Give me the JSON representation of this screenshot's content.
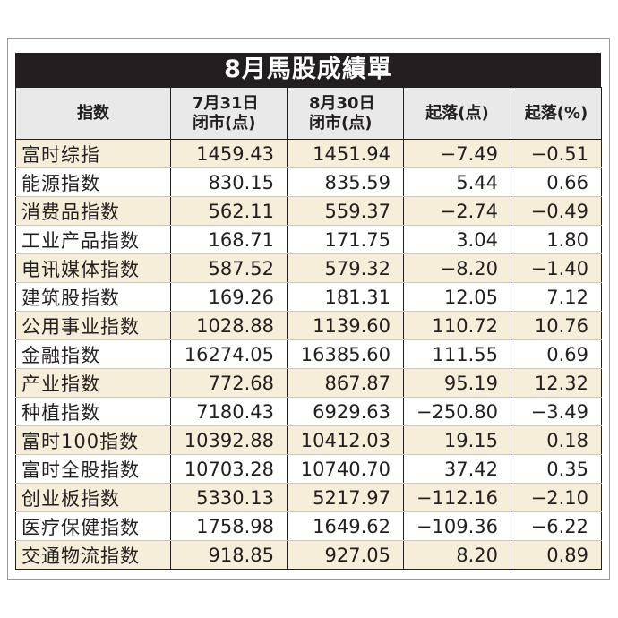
{
  "title": "8月馬股成績單",
  "headers": {
    "index": "指数",
    "jul31_line1": "7月31日",
    "jul31_line2": "闭市(点)",
    "aug30_line1": "8月30日",
    "aug30_line2": "闭市(点)",
    "change_pts": "起落(点)",
    "change_pct": "起落(%)"
  },
  "rows": [
    {
      "name": "富时综指",
      "jul31": "1459.43",
      "aug30": "1451.94",
      "chg": "−7.49",
      "pct": "−0.51"
    },
    {
      "name": "能源指数",
      "jul31": "830.15",
      "aug30": "835.59",
      "chg": "5.44",
      "pct": "0.66"
    },
    {
      "name": "消费品指数",
      "jul31": "562.11",
      "aug30": "559.37",
      "chg": "−2.74",
      "pct": "−0.49"
    },
    {
      "name": "工业产品指数",
      "jul31": "168.71",
      "aug30": "171.75",
      "chg": "3.04",
      "pct": "1.80"
    },
    {
      "name": "电讯媒体指数",
      "jul31": "587.52",
      "aug30": "579.32",
      "chg": "−8.20",
      "pct": "−1.40"
    },
    {
      "name": "建筑股指数",
      "jul31": "169.26",
      "aug30": "181.31",
      "chg": "12.05",
      "pct": "7.12"
    },
    {
      "name": "公用事业指数",
      "jul31": "1028.88",
      "aug30": "1139.60",
      "chg": "110.72",
      "pct": "10.76"
    },
    {
      "name": "金融指数",
      "jul31": "16274.05",
      "aug30": "16385.60",
      "chg": "111.55",
      "pct": "0.69"
    },
    {
      "name": "产业指数",
      "jul31": "772.68",
      "aug30": "867.87",
      "chg": "95.19",
      "pct": "12.32"
    },
    {
      "name": "种植指数",
      "jul31": "7180.43",
      "aug30": "6929.63",
      "chg": "−250.80",
      "pct": "−3.49"
    },
    {
      "name": "富时100指数",
      "jul31": "10392.88",
      "aug30": "10412.03",
      "chg": "19.15",
      "pct": "0.18"
    },
    {
      "name": "富时全股指数",
      "jul31": "10703.28",
      "aug30": "10740.70",
      "chg": "37.42",
      "pct": "0.35"
    },
    {
      "name": "创业板指数",
      "jul31": "5330.13",
      "aug30": "5217.97",
      "chg": "−112.16",
      "pct": "−2.10"
    },
    {
      "name": "医疗保健指数",
      "jul31": "1758.98",
      "aug30": "1649.62",
      "chg": "−109.36",
      "pct": "−6.22"
    },
    {
      "name": "交通物流指数",
      "jul31": "918.85",
      "aug30": "927.05",
      "chg": "8.20",
      "pct": "0.89"
    }
  ],
  "colors": {
    "title_background": "#231f20",
    "header_background": "#e9e9e9",
    "shaded_row": "#f6eed8"
  }
}
